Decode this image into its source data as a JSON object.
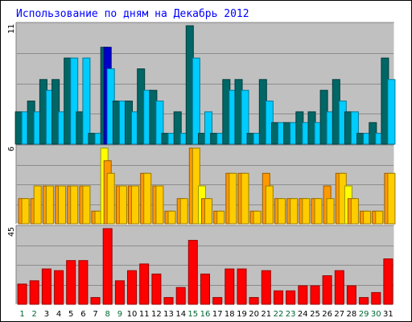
{
  "chart_data": {
    "type": "bar",
    "title": "Использование по дням на Декабрь 2012",
    "categories": [
      "1",
      "2",
      "3",
      "4",
      "5",
      "6",
      "7",
      "8",
      "9",
      "10",
      "11",
      "12",
      "13",
      "14",
      "15",
      "16",
      "17",
      "18",
      "19",
      "20",
      "21",
      "22",
      "23",
      "24",
      "25",
      "26",
      "27",
      "28",
      "29",
      "30",
      "31"
    ],
    "weekend_days": [
      1,
      2,
      8,
      9,
      15,
      16,
      22,
      23,
      29,
      30
    ],
    "panels": [
      {
        "name": "panel-1",
        "max_label": "11",
        "ymax": 11,
        "series": [
          {
            "color": "#006666",
            "values": [
              3,
              4,
              6,
              6,
              8,
              3,
              1,
              9,
              4,
              4,
              7,
              5,
              1,
              3,
              11,
              1,
              1,
              6,
              6,
              1,
              6,
              2,
              2,
              3,
              3,
              5,
              6,
              3,
              1,
              2,
              8
            ]
          },
          {
            "color": "#0000cc",
            "values": [
              0,
              0,
              0,
              0,
              0,
              0,
              0,
              9,
              0,
              0,
              0,
              0,
              0,
              0,
              0,
              0,
              0,
              0,
              0,
              0,
              0,
              0,
              0,
              0,
              0,
              0,
              0,
              0,
              0,
              0,
              0
            ]
          },
          {
            "color": "#00ccff",
            "values": [
              3,
              3,
              5,
              3,
              8,
              8,
              1,
              7,
              4,
              3,
              5,
              4,
              1,
              1,
              8,
              3,
              1,
              5,
              5,
              1,
              4,
              2,
              2,
              2,
              2,
              3,
              4,
              3,
              1,
              1,
              6
            ]
          }
        ]
      },
      {
        "name": "panel-2",
        "max_label": "6",
        "ymax": 6,
        "series": [
          {
            "color": "#ffff00",
            "values": [
              0,
              0,
              0,
              0,
              0,
              0,
              0,
              6,
              0,
              0,
              0,
              0,
              0,
              0,
              0,
              3,
              0,
              0,
              0,
              0,
              0,
              0,
              0,
              0,
              0,
              0,
              0,
              3,
              0,
              0,
              0
            ]
          },
          {
            "color": "#ff9900",
            "values": [
              2,
              2,
              3,
              3,
              3,
              3,
              1,
              5,
              3,
              3,
              4,
              3,
              1,
              2,
              6,
              2,
              1,
              4,
              4,
              1,
              4,
              2,
              2,
              2,
              2,
              3,
              4,
              2,
              1,
              1,
              4
            ]
          },
          {
            "color": "#ffcc00",
            "values": [
              2,
              3,
              3,
              3,
              3,
              3,
              1,
              4,
              3,
              3,
              4,
              3,
              1,
              2,
              6,
              2,
              1,
              4,
              4,
              1,
              3,
              2,
              2,
              2,
              2,
              2,
              4,
              2,
              1,
              1,
              4
            ]
          }
        ]
      },
      {
        "name": "panel-3",
        "max_label": "45",
        "ymax": 45,
        "series": [
          {
            "color": "#ff0000",
            "values": [
              12,
              14,
              21,
              20,
              26,
              26,
              4,
              45,
              14,
              20,
              24,
              18,
              4,
              10,
              38,
              18,
              4,
              21,
              21,
              4,
              20,
              8,
              8,
              11,
              11,
              17,
              20,
              11,
              4,
              7,
              27
            ]
          }
        ]
      }
    ]
  }
}
